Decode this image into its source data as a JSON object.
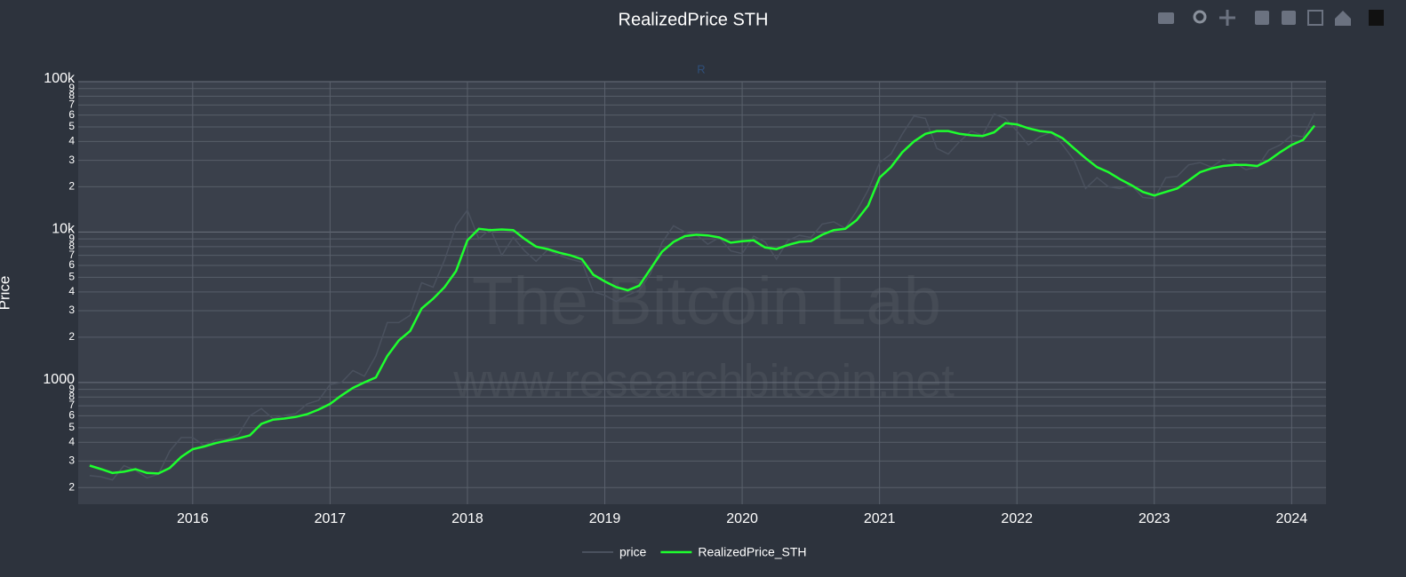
{
  "chart_data": {
    "type": "line",
    "title": "RealizedPrice STH",
    "annotation": "R",
    "watermark": [
      "The Bitcoin Lab",
      "www.researchbitcoin.net"
    ],
    "ylabel": "Price",
    "log_y": true,
    "grid": true,
    "legend": "bottom",
    "x": [
      "2015-04",
      "2015-05",
      "2015-06",
      "2015-07",
      "2015-08",
      "2015-09",
      "2015-10",
      "2015-11",
      "2015-12",
      "2016-01",
      "2016-02",
      "2016-03",
      "2016-04",
      "2016-05",
      "2016-06",
      "2016-07",
      "2016-08",
      "2016-09",
      "2016-10",
      "2016-11",
      "2016-12",
      "2017-01",
      "2017-02",
      "2017-03",
      "2017-04",
      "2017-05",
      "2017-06",
      "2017-07",
      "2017-08",
      "2017-09",
      "2017-10",
      "2017-11",
      "2017-12",
      "2018-01",
      "2018-02",
      "2018-03",
      "2018-04",
      "2018-05",
      "2018-06",
      "2018-07",
      "2018-08",
      "2018-09",
      "2018-10",
      "2018-11",
      "2018-12",
      "2019-01",
      "2019-02",
      "2019-03",
      "2019-04",
      "2019-05",
      "2019-06",
      "2019-07",
      "2019-08",
      "2019-09",
      "2019-10",
      "2019-11",
      "2019-12",
      "2020-01",
      "2020-02",
      "2020-03",
      "2020-04",
      "2020-05",
      "2020-06",
      "2020-07",
      "2020-08",
      "2020-09",
      "2020-10",
      "2020-11",
      "2020-12",
      "2021-01",
      "2021-02",
      "2021-03",
      "2021-04",
      "2021-05",
      "2021-06",
      "2021-07",
      "2021-08",
      "2021-09",
      "2021-10",
      "2021-11",
      "2021-12",
      "2022-01",
      "2022-02",
      "2022-03",
      "2022-04",
      "2022-05",
      "2022-06",
      "2022-07",
      "2022-08",
      "2022-09",
      "2022-10",
      "2022-11",
      "2022-12",
      "2023-01",
      "2023-02",
      "2023-03",
      "2023-04",
      "2023-05",
      "2023-06",
      "2023-07",
      "2023-08",
      "2023-09",
      "2023-10",
      "2023-11",
      "2023-12",
      "2024-01",
      "2024-02",
      "2024-03"
    ],
    "series": [
      {
        "name": "price",
        "color": "#4a515e",
        "values": [
          240,
          236,
          225,
          280,
          260,
          232,
          245,
          350,
          430,
          430,
          380,
          415,
          420,
          450,
          600,
          670,
          575,
          605,
          620,
          720,
          760,
          970,
          1000,
          1200,
          1100,
          1500,
          2500,
          2500,
          2800,
          4600,
          4300,
          6500,
          11000,
          14000,
          9000,
          10500,
          7000,
          9200,
          7500,
          6400,
          7600,
          7000,
          6600,
          6300,
          4000,
          3800,
          3450,
          3800,
          4100,
          5300,
          8500,
          11000,
          10000,
          9600,
          8300,
          9200,
          7500,
          7200,
          9400,
          8600,
          6600,
          8800,
          9500,
          9200,
          11300,
          11700,
          10600,
          13800,
          19000,
          29000,
          33000,
          45000,
          59000,
          57000,
          36000,
          33000,
          40000,
          47000,
          44000,
          61000,
          57000,
          47000,
          38000,
          43000,
          46000,
          38000,
          30000,
          19500,
          23000,
          20000,
          19500,
          20500,
          17000,
          16700,
          23000,
          23500,
          28000,
          29000,
          27000,
          30500,
          29000,
          26000,
          27000,
          35000,
          38000,
          44000,
          43000,
          62000
        ]
      },
      {
        "name": "RealizedPrice_STH",
        "color": "#1eff2e",
        "values": [
          280,
          265,
          250,
          255,
          265,
          250,
          248,
          270,
          320,
          360,
          375,
          395,
          410,
          425,
          445,
          530,
          565,
          575,
          590,
          615,
          660,
          720,
          820,
          920,
          1000,
          1080,
          1500,
          1900,
          2200,
          3100,
          3600,
          4300,
          5500,
          8800,
          10500,
          10300,
          10400,
          10300,
          9000,
          8000,
          7700,
          7300,
          7000,
          6600,
          5200,
          4700,
          4300,
          4100,
          4400,
          5700,
          7400,
          8600,
          9400,
          9600,
          9500,
          9200,
          8500,
          8700,
          8800,
          7900,
          7700,
          8200,
          8600,
          8700,
          9600,
          10300,
          10500,
          12000,
          15000,
          23000,
          27000,
          34000,
          40000,
          45000,
          47000,
          47000,
          45000,
          44000,
          43500,
          46000,
          53000,
          52000,
          49000,
          47000,
          46000,
          42000,
          36000,
          31000,
          27000,
          25000,
          22500,
          20500,
          18500,
          17500,
          18500,
          19500,
          22000,
          25000,
          26500,
          27500,
          28000,
          28000,
          27500,
          30000,
          34000,
          38000,
          41000,
          51000
        ]
      }
    ],
    "xlim": [
      "2015-03",
      "2024-04"
    ],
    "xticks": [
      "2016",
      "2017",
      "2018",
      "2019",
      "2020",
      "2021",
      "2022",
      "2023",
      "2024"
    ],
    "ylim": [
      155,
      100000
    ],
    "yticks": [
      {
        "value": 200,
        "label": "2"
      },
      {
        "value": 300,
        "label": "3"
      },
      {
        "value": 400,
        "label": "4"
      },
      {
        "value": 500,
        "label": "5"
      },
      {
        "value": 600,
        "label": "6"
      },
      {
        "value": 700,
        "label": "7"
      },
      {
        "value": 800,
        "label": "8"
      },
      {
        "value": 900,
        "label": "9"
      },
      1000,
      {
        "value": 2000,
        "label": "2"
      },
      {
        "value": 3000,
        "label": "3"
      },
      {
        "value": 4000,
        "label": "4"
      },
      {
        "value": 5000,
        "label": "5"
      },
      {
        "value": 6000,
        "label": "6"
      },
      {
        "value": 7000,
        "label": "7"
      },
      {
        "value": 8000,
        "label": "8"
      },
      {
        "value": 9000,
        "label": "9"
      },
      {
        "value": 10000,
        "label": "10k"
      },
      {
        "value": 20000,
        "label": "2"
      },
      {
        "value": 30000,
        "label": "3"
      },
      {
        "value": 40000,
        "label": "4"
      },
      {
        "value": 50000,
        "label": "5"
      },
      {
        "value": 60000,
        "label": "6"
      },
      {
        "value": 70000,
        "label": "7"
      },
      {
        "value": 80000,
        "label": "8"
      },
      {
        "value": 90000,
        "label": "9"
      },
      {
        "value": 100000,
        "label": "100k"
      }
    ]
  }
}
